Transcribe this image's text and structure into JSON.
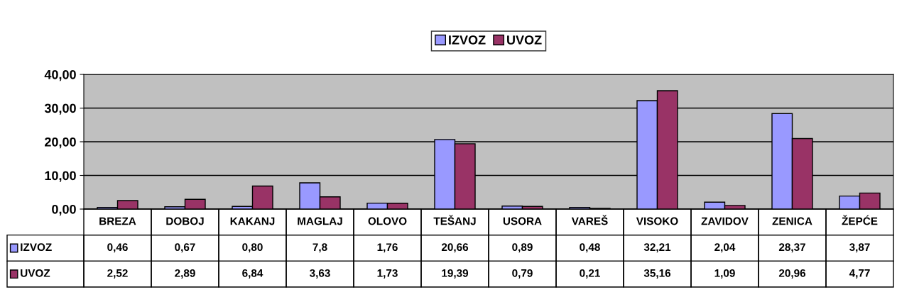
{
  "chart_data": {
    "type": "bar",
    "categories": [
      "BREZA",
      "DOBOJ",
      "KAKANJ",
      "MAGLAJ",
      "OLOVO",
      "TEŠANJ",
      "USORA",
      "VAREŠ",
      "VISOKO",
      "ZAVIDOV",
      "ZENICA",
      "ŽEPĆE"
    ],
    "series": [
      {
        "name": "IZVOZ",
        "color": "#9999ff",
        "values": [
          0.46,
          0.67,
          0.8,
          7.8,
          1.76,
          20.66,
          0.89,
          0.48,
          32.21,
          2.04,
          28.37,
          3.87
        ],
        "value_labels": [
          "0,46",
          "0,67",
          "0,80",
          "7,8",
          "1,76",
          "20,66",
          "0,89",
          "0,48",
          "32,21",
          "2,04",
          "28,37",
          "3,87"
        ]
      },
      {
        "name": "UVOZ",
        "color": "#993366",
        "values": [
          2.52,
          2.89,
          6.84,
          3.63,
          1.73,
          19.39,
          0.79,
          0.21,
          35.16,
          1.09,
          20.96,
          4.77
        ],
        "value_labels": [
          "2,52",
          "2,89",
          "6,84",
          "3,63",
          "1,73",
          "19,39",
          "0,79",
          "0,21",
          "35,16",
          "1,09",
          "20,96",
          "4,77"
        ]
      }
    ],
    "ylim": [
      0,
      40
    ],
    "yticks": [
      {
        "value": 0,
        "label": "0,00"
      },
      {
        "value": 10,
        "label": "10,00"
      },
      {
        "value": 20,
        "label": "20,00"
      },
      {
        "value": 30,
        "label": "30,00"
      },
      {
        "value": 40,
        "label": "40,00"
      }
    ],
    "grid": "y",
    "legend": "top"
  }
}
